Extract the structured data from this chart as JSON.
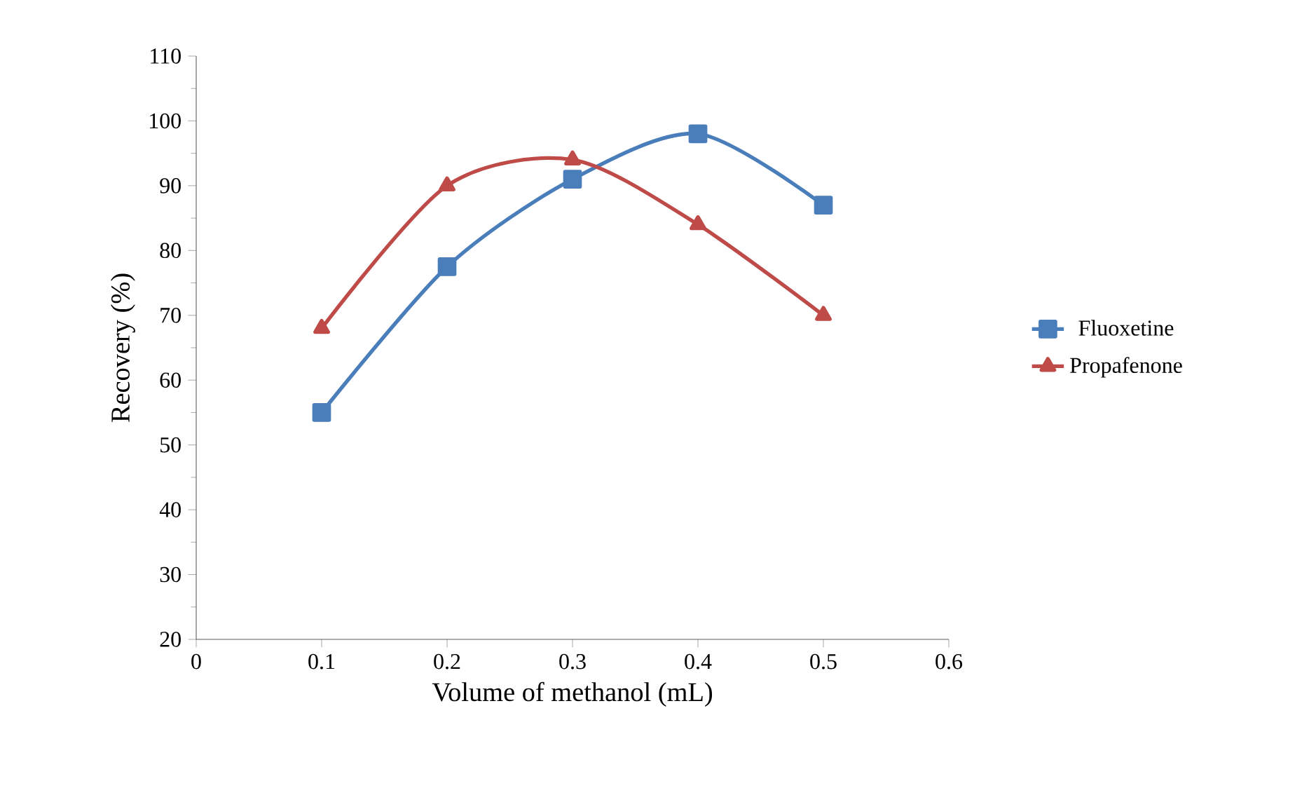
{
  "chart_data": {
    "type": "line",
    "xlabel": "Volume of methanol (mL)",
    "ylabel": "Recovery (%)",
    "x": [
      0.1,
      0.2,
      0.3,
      0.4,
      0.5
    ],
    "series": [
      {
        "name": "Fluoxetine",
        "color": "#4a7ebb",
        "marker": "square",
        "values": [
          55,
          77.5,
          91,
          98,
          87
        ]
      },
      {
        "name": "Propafenone",
        "color": "#be4b48",
        "marker": "triangle",
        "values": [
          68,
          90,
          94,
          84,
          70
        ]
      }
    ],
    "xlim": [
      0,
      0.6
    ],
    "xticks": [
      0,
      0.1,
      0.2,
      0.3,
      0.4,
      0.5,
      0.6
    ],
    "ylim": [
      20,
      110
    ],
    "yticks": [
      20,
      30,
      40,
      50,
      60,
      70,
      80,
      90,
      100,
      110
    ],
    "grid": false,
    "legend": "right",
    "line_style": "solid"
  }
}
